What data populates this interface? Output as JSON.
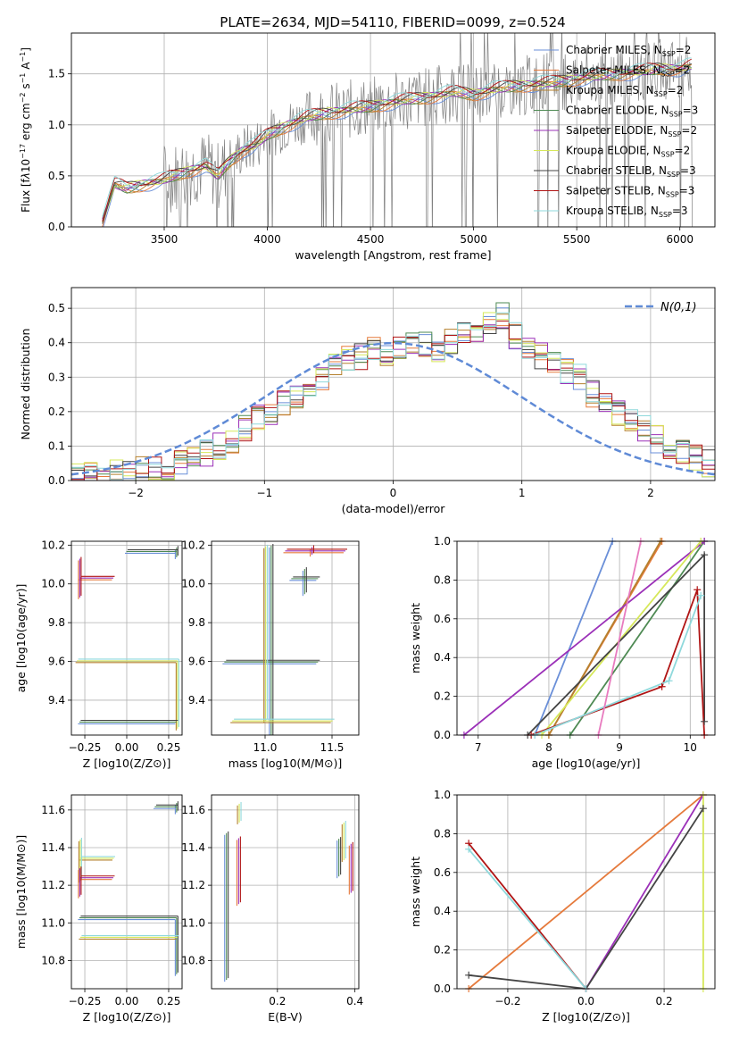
{
  "figure": {
    "title": "PLATE=2634, MJD=54110, FIBERID=0099, z=0.524"
  },
  "models": [
    {
      "name": "Chabrier MILES, N_SSP=2",
      "color": "#6a8fd8"
    },
    {
      "name": "Salpeter MILES, N_SSP=2",
      "color": "#e57a3c"
    },
    {
      "name": "Kroupa MILES, N_SSP=2",
      "color": "#b5812e"
    },
    {
      "name": "Chabrier ELODIE, N_SSP=3",
      "color": "#4e8a53"
    },
    {
      "name": "Salpeter ELODIE, N_SSP=2",
      "color": "#9b30b8"
    },
    {
      "name": "Kroupa ELODIE, N_SSP=2",
      "color": "#d6e85a"
    },
    {
      "name": "Chabrier STELIB, N_SSP=3",
      "color": "#444444"
    },
    {
      "name": "Salpeter STELIB, N_SSP=3",
      "color": "#b01414"
    },
    {
      "name": "Kroupa STELIB, N_SSP=3",
      "color": "#8fd9dc"
    }
  ],
  "chart_data": [
    {
      "id": "spectrum",
      "type": "line",
      "xlabel": "wavelength [Angstrom, rest frame]",
      "ylabel": "Flux [f_λ10^-17 erg cm^-2 s^-1 A^-1]",
      "xlim": [
        3050,
        6170
      ],
      "ylim": [
        0,
        1.9
      ],
      "xticks": [
        3500,
        4000,
        4500,
        5000,
        5500,
        6000
      ],
      "yticks": [
        0.0,
        0.5,
        1.0,
        1.5
      ],
      "legend": "top-right",
      "data_color": "#808080",
      "model_curve": {
        "x": [
          3200,
          3260,
          3320,
          3400,
          3480,
          3550,
          3620,
          3700,
          3760,
          3820,
          3880,
          3940,
          4000,
          4100,
          4200,
          4300,
          4400,
          4500,
          4600,
          4700,
          4800,
          4900,
          5000,
          5100,
          5200,
          5300,
          5400,
          5500,
          5600,
          5700,
          5800,
          5900,
          6000,
          6050
        ],
        "y": [
          0.05,
          0.42,
          0.38,
          0.42,
          0.45,
          0.5,
          0.55,
          0.6,
          0.5,
          0.65,
          0.75,
          0.8,
          0.9,
          1.0,
          1.08,
          1.12,
          1.15,
          1.18,
          1.22,
          1.25,
          1.28,
          1.32,
          1.3,
          1.35,
          1.38,
          1.4,
          1.42,
          1.45,
          1.48,
          1.5,
          1.52,
          1.55,
          1.55,
          1.58
        ]
      }
    },
    {
      "id": "residuals",
      "type": "line",
      "xlabel": "(data-model)/error",
      "ylabel": "Normed distribution",
      "xlim": [
        -2.5,
        2.5
      ],
      "ylim": [
        0,
        0.56
      ],
      "xticks": [
        -2,
        -1,
        0,
        1,
        2
      ],
      "yticks": [
        0.0,
        0.1,
        0.2,
        0.3,
        0.4,
        0.5
      ],
      "grid": true,
      "legend": "top-right",
      "normal_label": "N(0,1)",
      "normal_color": "#5f8ad6",
      "bin_edges_start": -2.5,
      "bin_width": 0.1,
      "hist_base": [
        0.01,
        0.015,
        0.02,
        0.025,
        0.028,
        0.03,
        0.035,
        0.04,
        0.05,
        0.06,
        0.08,
        0.1,
        0.12,
        0.15,
        0.18,
        0.2,
        0.22,
        0.25,
        0.27,
        0.3,
        0.33,
        0.35,
        0.36,
        0.38,
        0.37,
        0.38,
        0.39,
        0.4,
        0.38,
        0.4,
        0.42,
        0.43,
        0.45,
        0.48,
        0.42,
        0.38,
        0.36,
        0.35,
        0.32,
        0.3,
        0.25,
        0.22,
        0.2,
        0.17,
        0.15,
        0.12,
        0.1,
        0.08,
        0.07,
        0.05
      ]
    },
    {
      "id": "age-vs-Z",
      "type": "scatter",
      "xlabel": "Z [log10(Z/Z⊙)]",
      "ylabel": "age [log10(age/yr)]",
      "xlim": [
        -0.33,
        0.33
      ],
      "ylim": [
        9.22,
        10.22
      ],
      "xticks": [
        -0.25,
        0.0,
        0.25
      ],
      "yticks": [
        9.4,
        9.6,
        9.8,
        10.0,
        10.2
      ],
      "points": [
        {
          "x": 0.3,
          "y": 10.17,
          "xerr": [
            0.3,
            0.0
          ],
          "yerr": [
            0.03,
            0.02
          ]
        },
        {
          "x": 0.3,
          "y": 9.6,
          "xerr": [
            0.6,
            0.0
          ],
          "yerr": [
            0.35,
            0.0
          ]
        },
        {
          "x": -0.28,
          "y": 10.03,
          "xerr": [
            0.0,
            0.2
          ],
          "yerr": [
            0.1,
            0.1
          ]
        },
        {
          "x": -0.28,
          "y": 9.29,
          "xerr": [
            0.0,
            0.58
          ],
          "yerr": [
            0.0,
            0.0
          ]
        }
      ]
    },
    {
      "id": "age-vs-mass",
      "type": "scatter",
      "xlabel": "mass [log10(M/M⊙)]",
      "ylabel": "",
      "xlim": [
        10.6,
        11.7
      ],
      "ylim": [
        9.22,
        10.22
      ],
      "xticks": [
        11.0,
        11.5
      ],
      "yticks": [
        9.4,
        9.6,
        9.8,
        10.0,
        10.2
      ],
      "points": [
        {
          "x": 11.05,
          "y": 9.6,
          "xerr": [
            0.35,
            0.35
          ],
          "yerr": [
            0.4,
            0.6
          ]
        },
        {
          "x": 11.0,
          "y": 9.29,
          "xerr": [
            0.25,
            0.5
          ],
          "yerr": [
            0.0,
            0.9
          ]
        },
        {
          "x": 11.35,
          "y": 10.17,
          "xerr": [
            0.2,
            0.25
          ],
          "yerr": [
            0.02,
            0.02
          ]
        },
        {
          "x": 11.3,
          "y": 10.03,
          "xerr": [
            0.1,
            0.1
          ],
          "yerr": [
            0.08,
            0.05
          ]
        }
      ]
    },
    {
      "id": "massweight-vs-age",
      "type": "line",
      "xlabel": "age [log10(age/yr)]",
      "ylabel": "mass weight",
      "xlim": [
        6.7,
        10.35
      ],
      "ylim": [
        0,
        1
      ],
      "xticks": [
        7,
        8,
        9,
        10
      ],
      "yticks": [
        0.0,
        0.2,
        0.4,
        0.6,
        0.8,
        1.0
      ],
      "grid": true,
      "lines": [
        {
          "model": 0,
          "x": [
            7.8,
            8.9
          ],
          "y": [
            0.0,
            1.0
          ]
        },
        {
          "model": 1,
          "x": [
            8.0,
            9.6
          ],
          "y": [
            0.0,
            1.0
          ]
        },
        {
          "model": 2,
          "x": [
            8.0,
            9.58
          ],
          "y": [
            0.0,
            1.0
          ]
        },
        {
          "model": 3,
          "x": [
            8.3,
            10.2
          ],
          "y": [
            0.0,
            1.0
          ]
        },
        {
          "model": 4,
          "x": [
            6.8,
            10.2
          ],
          "y": [
            0.0,
            1.0
          ]
        },
        {
          "model": 5,
          "x": [
            7.9,
            10.15
          ],
          "y": [
            0.0,
            1.0
          ]
        },
        {
          "model": 6,
          "x": [
            7.7,
            10.2,
            10.2
          ],
          "y": [
            0.0,
            0.93,
            0.07
          ]
        },
        {
          "model": 7,
          "x": [
            7.75,
            9.6,
            10.1,
            10.2
          ],
          "y": [
            0.0,
            0.25,
            0.75,
            0.0
          ]
        },
        {
          "model": 8,
          "x": [
            7.8,
            9.7,
            10.15
          ],
          "y": [
            0.0,
            0.28,
            0.72
          ]
        },
        {
          "model": 9,
          "x": [
            8.7,
            9.3
          ],
          "y": [
            0.0,
            1.0
          ],
          "color": "#e87bbf"
        }
      ]
    },
    {
      "id": "mass-vs-Z",
      "type": "scatter",
      "xlabel": "Z [log10(Z/Z⊙)]",
      "ylabel": "mass [log10(M/M⊙)]",
      "xlim": [
        -0.33,
        0.33
      ],
      "ylim": [
        10.65,
        11.68
      ],
      "xticks": [
        -0.25,
        0.0,
        0.25
      ],
      "yticks": [
        10.8,
        11.0,
        11.2,
        11.4,
        11.6
      ],
      "points": [
        {
          "x": 0.3,
          "y": 11.62,
          "xerr": [
            0.13,
            0.0
          ],
          "yerr": [
            0.03,
            0.02
          ]
        },
        {
          "x": -0.28,
          "y": 11.34,
          "xerr": [
            0.0,
            0.2
          ],
          "yerr": [
            0.12,
            0.1
          ]
        },
        {
          "x": -0.28,
          "y": 11.24,
          "xerr": [
            0.0,
            0.2
          ],
          "yerr": [
            0.1,
            0.05
          ]
        },
        {
          "x": 0.3,
          "y": 11.03,
          "xerr": [
            0.58,
            0.0
          ],
          "yerr": [
            0.3,
            0.0
          ]
        },
        {
          "x": 0.3,
          "y": 10.92,
          "xerr": [
            0.58,
            0.0
          ],
          "yerr": [
            0.0,
            0.0
          ]
        }
      ]
    },
    {
      "id": "mass-vs-EBV",
      "type": "scatter",
      "xlabel": "E(B-V)",
      "ylabel": "",
      "xlim": [
        0.03,
        0.41
      ],
      "ylim": [
        10.65,
        11.68
      ],
      "xticks": [
        0.2,
        0.4
      ],
      "yticks": [
        10.8,
        11.0,
        11.2,
        11.4,
        11.6
      ],
      "points": [
        {
          "x": 0.07,
          "y": 11.2,
          "yerr": [
            0.5,
            0.28
          ]
        },
        {
          "x": 0.1,
          "y": 11.58,
          "yerr": [
            0.05,
            0.05
          ]
        },
        {
          "x": 0.1,
          "y": 11.35,
          "yerr": [
            0.25,
            0.1
          ]
        },
        {
          "x": 0.36,
          "y": 11.35,
          "yerr": [
            0.1,
            0.1
          ]
        },
        {
          "x": 0.37,
          "y": 11.45,
          "yerr": [
            0.12,
            0.08
          ]
        },
        {
          "x": 0.39,
          "y": 11.28,
          "yerr": [
            0.12,
            0.14
          ]
        }
      ]
    },
    {
      "id": "massweight-vs-Z",
      "type": "line",
      "xlabel": "Z [log10(Z/Z⊙)]",
      "ylabel": "mass weight",
      "xlim": [
        -0.33,
        0.33
      ],
      "ylim": [
        0,
        1
      ],
      "xticks": [
        -0.2,
        0.0,
        0.2
      ],
      "yticks": [
        0.0,
        0.2,
        0.4,
        0.6,
        0.8,
        1.0
      ],
      "grid": true,
      "lines": [
        {
          "model": 1,
          "x": [
            -0.3,
            0.3
          ],
          "y": [
            0.0,
            1.0
          ]
        },
        {
          "model": 4,
          "x": [
            0.0,
            0.3
          ],
          "y": [
            0.0,
            1.0
          ]
        },
        {
          "model": 6,
          "x": [
            -0.3,
            0.0,
            0.3
          ],
          "y": [
            0.07,
            0.0,
            0.93
          ]
        },
        {
          "model": 7,
          "x": [
            -0.3,
            0.0
          ],
          "y": [
            0.75,
            0.0
          ]
        },
        {
          "model": 8,
          "x": [
            -0.3,
            0.0
          ],
          "y": [
            0.72,
            0.0
          ]
        },
        {
          "model": 5,
          "x": [
            0.3,
            0.3
          ],
          "y": [
            0.0,
            1.0
          ]
        }
      ]
    }
  ]
}
